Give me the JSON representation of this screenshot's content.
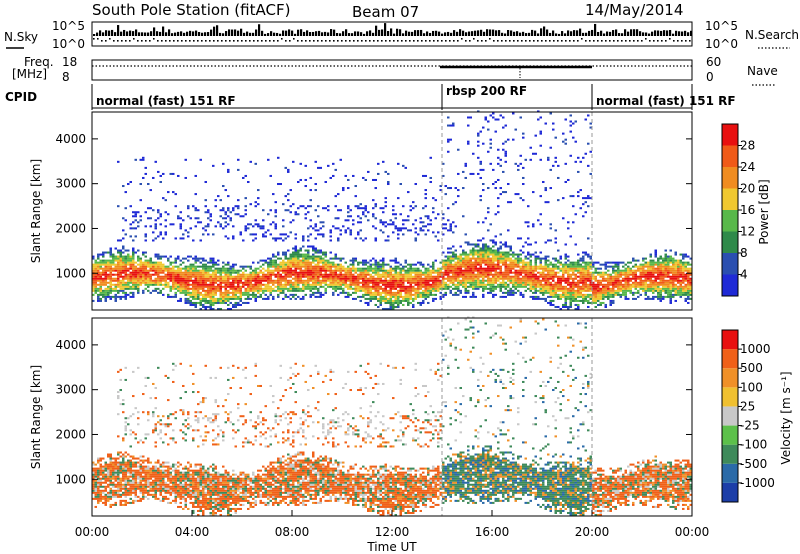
{
  "header": {
    "station": "South Pole Station (fitACF)",
    "beam": "Beam 07",
    "date": "14/May/2014"
  },
  "strip": {
    "nsky_label": "N.Sky",
    "nsearch_label": "N.Search",
    "noise_tick_top": "10^5",
    "noise_tick_bottom": "10^0",
    "freq_label_1": "Freq.",
    "freq_label_2": "[MHz]",
    "freq_ticks": [
      "18",
      "8"
    ],
    "nave_label": "Nave",
    "nave_ticks": [
      "60",
      "0"
    ],
    "cpid_label": "CPID",
    "cpid_modes": [
      {
        "name": "normal (fast) 151 RF",
        "start_h": 0,
        "end_h": 14
      },
      {
        "name": "rbsp 200 RF",
        "start_h": 14,
        "end_h": 20
      },
      {
        "name": "normal (fast) 151 RF",
        "start_h": 20,
        "end_h": 24
      }
    ]
  },
  "chart_data": [
    {
      "type": "heatmap",
      "panel": "power",
      "ylabel": "Slant Range [km]",
      "xlabel": "Time UT",
      "xlim_hours": [
        0,
        24
      ],
      "ylim_km": [
        180,
        4600
      ],
      "y_ticks": [
        1000,
        2000,
        3000,
        4000
      ],
      "colorbar": {
        "label": "Power [dB]",
        "tick_labels": [
          "4",
          "8",
          "12",
          "16",
          "20",
          "24",
          "28"
        ],
        "colors": [
          "#1f2ad6",
          "#2a4fb0",
          "#2f8a4a",
          "#58b84a",
          "#f0c830",
          "#f08c20",
          "#f05a18",
          "#e81010"
        ]
      }
    },
    {
      "type": "heatmap",
      "panel": "velocity",
      "ylabel": "Slant Range [km]",
      "xlabel": "Time UT",
      "xlim_hours": [
        0,
        24
      ],
      "ylim_km": [
        180,
        4600
      ],
      "y_ticks": [
        1000,
        2000,
        3000,
        4000
      ],
      "x_tick_labels": [
        "00:00",
        "04:00",
        "08:00",
        "12:00",
        "16:00",
        "20:00",
        "00:00"
      ],
      "colorbar": {
        "label": "Velocity [m s⁻¹]",
        "tick_labels": [
          "1000",
          "500",
          "100",
          "25",
          "-25",
          "-100",
          "-500",
          "-1000"
        ],
        "colors": [
          "#1c3ea8",
          "#2a6aa8",
          "#3e8a5a",
          "#5cc04a",
          "#c8c8c8",
          "#f0c030",
          "#f09028",
          "#f06018",
          "#e81010"
        ]
      }
    }
  ]
}
